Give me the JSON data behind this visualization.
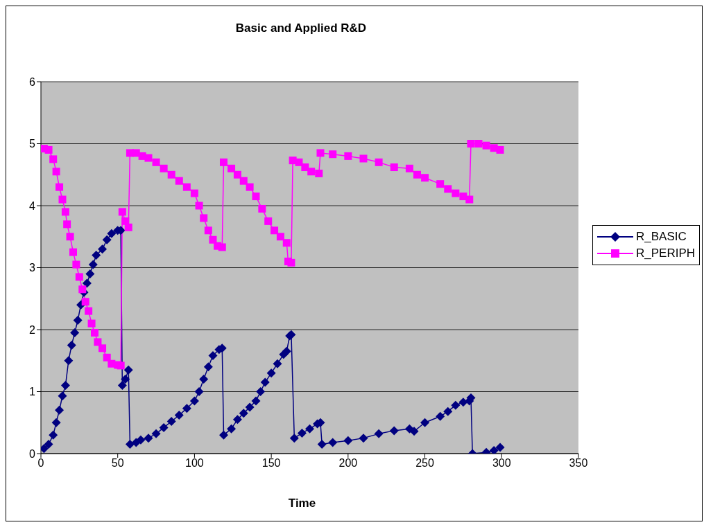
{
  "chart_data": {
    "type": "line",
    "title": "Basic and Applied R&D",
    "xlabel": "Time",
    "xlim": [
      0,
      350
    ],
    "xticks": [
      0,
      50,
      100,
      150,
      200,
      250,
      300,
      350
    ],
    "ylim": [
      0,
      6
    ],
    "yticks": [
      0,
      1,
      2,
      3,
      4,
      5,
      6
    ],
    "grid": "y",
    "legend": "right",
    "series": [
      {
        "name": "R_BASIC",
        "color": "#000080",
        "marker": "diamond",
        "x": [
          2,
          5,
          8,
          10,
          12,
          14,
          16,
          18,
          20,
          22,
          24,
          26,
          28,
          30,
          32,
          34,
          36,
          40,
          43,
          46,
          50,
          52,
          53,
          55,
          57,
          58,
          62,
          65,
          70,
          75,
          80,
          85,
          90,
          95,
          100,
          103,
          106,
          109,
          112,
          116,
          118,
          119,
          124,
          128,
          132,
          136,
          140,
          143,
          146,
          150,
          154,
          158,
          160,
          162,
          163,
          165,
          170,
          175,
          180,
          182,
          183,
          190,
          200,
          210,
          220,
          230,
          240,
          243,
          250,
          260,
          265,
          270,
          275,
          279,
          280,
          281,
          290,
          295,
          299
        ],
        "values": [
          0.08,
          0.15,
          0.3,
          0.5,
          0.7,
          0.93,
          1.1,
          1.5,
          1.75,
          1.95,
          2.15,
          2.4,
          2.6,
          2.75,
          2.9,
          3.05,
          3.2,
          3.3,
          3.45,
          3.55,
          3.6,
          3.6,
          1.1,
          1.2,
          1.35,
          0.15,
          0.18,
          0.22,
          0.25,
          0.32,
          0.42,
          0.52,
          0.62,
          0.73,
          0.85,
          1.0,
          1.2,
          1.4,
          1.58,
          1.68,
          1.7,
          0.3,
          0.4,
          0.55,
          0.65,
          0.75,
          0.85,
          1.0,
          1.15,
          1.3,
          1.45,
          1.6,
          1.65,
          1.9,
          1.92,
          0.25,
          0.33,
          0.4,
          0.48,
          0.5,
          0.15,
          0.18,
          0.21,
          0.25,
          0.32,
          0.37,
          0.4,
          0.36,
          0.5,
          0.6,
          0.68,
          0.78,
          0.83,
          0.85,
          0.9,
          0.0,
          0.02,
          0.05,
          0.1
        ]
      },
      {
        "name": "R_PERIPH",
        "color": "#ff00ff",
        "marker": "square",
        "x": [
          2,
          5,
          8,
          10,
          12,
          14,
          16,
          17,
          19,
          21,
          23,
          25,
          27,
          29,
          31,
          33,
          35,
          37,
          40,
          43,
          46,
          50,
          52,
          53,
          55,
          57,
          58,
          62,
          66,
          70,
          75,
          80,
          85,
          90,
          95,
          100,
          103,
          106,
          109,
          112,
          115,
          118,
          119,
          124,
          128,
          132,
          136,
          140,
          144,
          148,
          152,
          156,
          160,
          161,
          163,
          164,
          168,
          172,
          176,
          181,
          182,
          190,
          200,
          210,
          220,
          230,
          240,
          245,
          250,
          260,
          265,
          270,
          275,
          279,
          280,
          285,
          290,
          295,
          299
        ],
        "values": [
          4.92,
          4.9,
          4.75,
          4.55,
          4.3,
          4.1,
          3.9,
          3.7,
          3.5,
          3.25,
          3.05,
          2.85,
          2.65,
          2.45,
          2.3,
          2.1,
          1.95,
          1.8,
          1.7,
          1.55,
          1.45,
          1.43,
          1.42,
          3.9,
          3.75,
          3.65,
          4.85,
          4.85,
          4.8,
          4.77,
          4.7,
          4.6,
          4.5,
          4.4,
          4.3,
          4.2,
          4.0,
          3.8,
          3.6,
          3.45,
          3.35,
          3.33,
          4.7,
          4.6,
          4.5,
          4.4,
          4.3,
          4.15,
          3.95,
          3.75,
          3.6,
          3.5,
          3.4,
          3.1,
          3.08,
          4.73,
          4.7,
          4.62,
          4.55,
          4.52,
          4.85,
          4.83,
          4.8,
          4.76,
          4.7,
          4.62,
          4.6,
          4.5,
          4.45,
          4.35,
          4.27,
          4.2,
          4.15,
          4.1,
          5.0,
          5.0,
          4.97,
          4.93,
          4.9
        ]
      }
    ]
  }
}
